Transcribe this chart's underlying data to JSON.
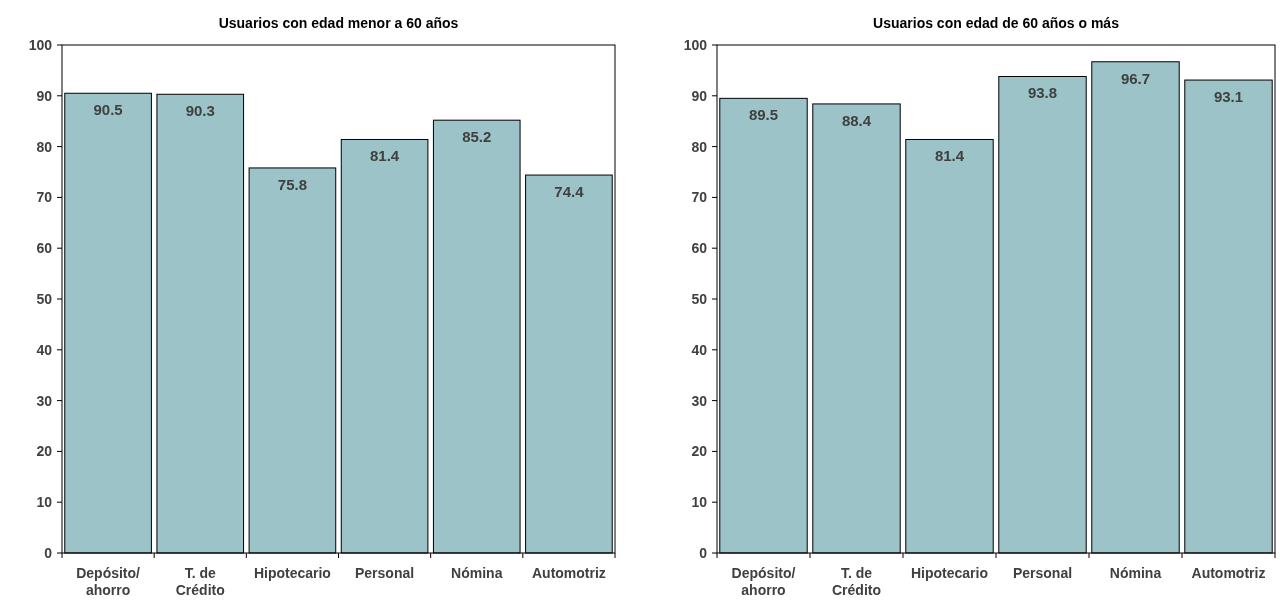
{
  "chart_data": [
    {
      "type": "bar",
      "title": "Usuarios con edad menor a 60 años",
      "categories": [
        "Depósito/\nahorro",
        "T. de\nCrédito",
        "Hipotecario",
        "Personal",
        "Nómina",
        "Automotriz"
      ],
      "values": [
        90.5,
        90.3,
        75.8,
        81.4,
        85.2,
        74.4
      ],
      "color": "#9bc3c8",
      "ylim": [
        0,
        100
      ],
      "yticks": [
        0,
        10,
        20,
        30,
        40,
        50,
        60,
        70,
        80,
        90,
        100
      ],
      "data_labels": true,
      "grid": false
    },
    {
      "type": "bar",
      "title": "Usuarios con edad de 60 años o más",
      "categories": [
        "Depósito/\nahorro",
        "T. de\nCrédito",
        "Hipotecario",
        "Personal",
        "Nómina",
        "Automotriz"
      ],
      "values": [
        89.5,
        88.4,
        81.4,
        93.8,
        96.7,
        93.1
      ],
      "color": "#9bc3c8",
      "ylim": [
        0,
        100
      ],
      "yticks": [
        0,
        10,
        20,
        30,
        40,
        50,
        60,
        70,
        80,
        90,
        100
      ],
      "data_labels": true,
      "grid": false
    }
  ]
}
